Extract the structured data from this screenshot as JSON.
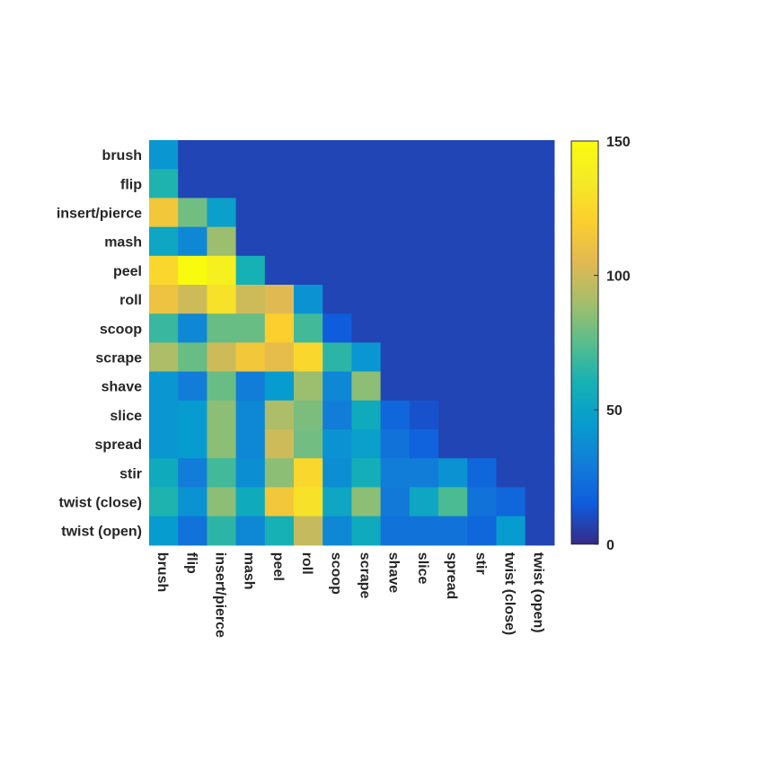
{
  "chart_data": {
    "type": "heatmap",
    "title": "",
    "xlabel": "",
    "ylabel": "",
    "categories": [
      "brush",
      "flip",
      "insert/pierce",
      "mash",
      "peel",
      "roll",
      "scoop",
      "scrape",
      "shave",
      "slice",
      "spread",
      "stir",
      "twist (close)",
      "twist (open)"
    ],
    "colormap": "parula",
    "clim": [
      0,
      150
    ],
    "colorbar_ticks": [
      0,
      50,
      100,
      150
    ],
    "colorbar_tick_labels": [
      "0",
      "50",
      "100",
      "150"
    ],
    "values": [
      [
        42,
        8,
        8,
        8,
        8,
        8,
        8,
        8,
        8,
        8,
        8,
        8,
        8,
        8
      ],
      [
        62,
        8,
        8,
        8,
        8,
        8,
        8,
        8,
        8,
        8,
        8,
        8,
        8,
        8
      ],
      [
        115,
        80,
        48,
        8,
        8,
        8,
        8,
        8,
        8,
        8,
        8,
        8,
        8,
        8
      ],
      [
        52,
        35,
        88,
        8,
        8,
        8,
        8,
        8,
        8,
        8,
        8,
        8,
        8,
        8
      ],
      [
        125,
        150,
        140,
        60,
        8,
        8,
        8,
        8,
        8,
        8,
        8,
        8,
        8,
        8
      ],
      [
        112,
        100,
        130,
        100,
        105,
        40,
        8,
        8,
        8,
        8,
        8,
        8,
        8,
        8
      ],
      [
        68,
        35,
        78,
        78,
        120,
        70,
        15,
        8,
        8,
        8,
        8,
        8,
        8,
        8
      ],
      [
        92,
        78,
        100,
        115,
        108,
        125,
        65,
        42,
        8,
        8,
        8,
        8,
        8,
        8
      ],
      [
        42,
        30,
        78,
        30,
        45,
        88,
        35,
        85,
        8,
        8,
        8,
        8,
        8,
        8
      ],
      [
        42,
        45,
        85,
        35,
        92,
        82,
        30,
        55,
        20,
        12,
        8,
        8,
        8,
        8
      ],
      [
        42,
        45,
        85,
        35,
        100,
        80,
        40,
        48,
        25,
        18,
        8,
        8,
        8,
        8
      ],
      [
        55,
        30,
        70,
        38,
        85,
        125,
        38,
        58,
        30,
        30,
        40,
        20,
        8,
        8
      ],
      [
        62,
        40,
        85,
        55,
        115,
        130,
        52,
        85,
        28,
        52,
        72,
        25,
        20,
        8
      ],
      [
        45,
        25,
        65,
        35,
        60,
        98,
        35,
        55,
        25,
        25,
        25,
        20,
        45,
        8
      ]
    ]
  }
}
